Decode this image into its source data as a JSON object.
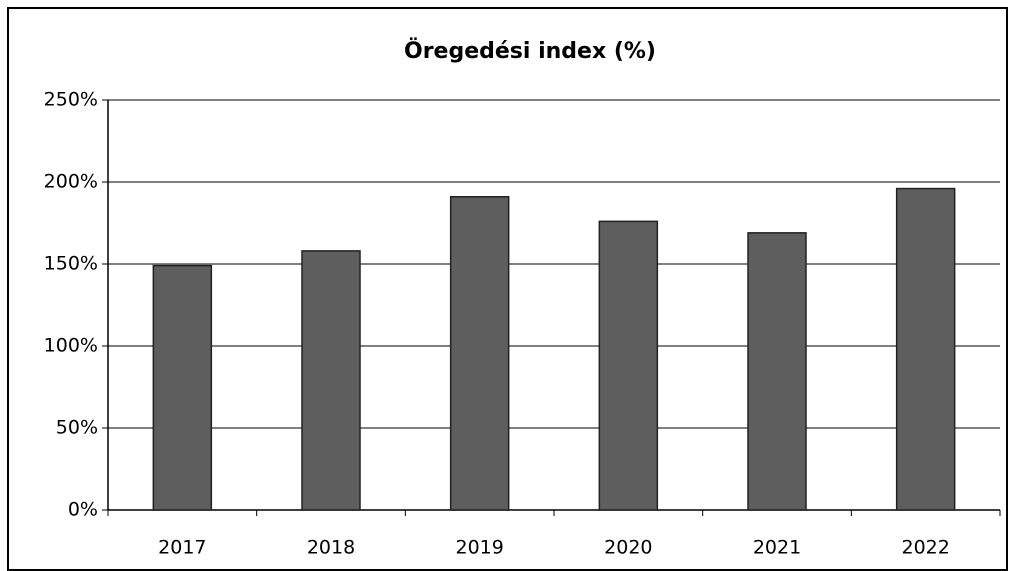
{
  "chart_data": {
    "type": "bar",
    "title": "Öregedési index (%)",
    "categories": [
      "2017",
      "2018",
      "2019",
      "2020",
      "2021",
      "2022"
    ],
    "values": [
      149,
      158,
      191,
      176,
      169,
      196
    ],
    "color": "#5e5e5e",
    "ylim": [
      0,
      250
    ],
    "yticks": [
      {
        "value": 0,
        "label": "0%"
      },
      {
        "value": 50,
        "label": "50%"
      },
      {
        "value": 100,
        "label": "100%"
      },
      {
        "value": 150,
        "label": "150%"
      },
      {
        "value": 200,
        "label": "200%"
      },
      {
        "value": 250,
        "label": "250%"
      }
    ],
    "grid": true
  }
}
